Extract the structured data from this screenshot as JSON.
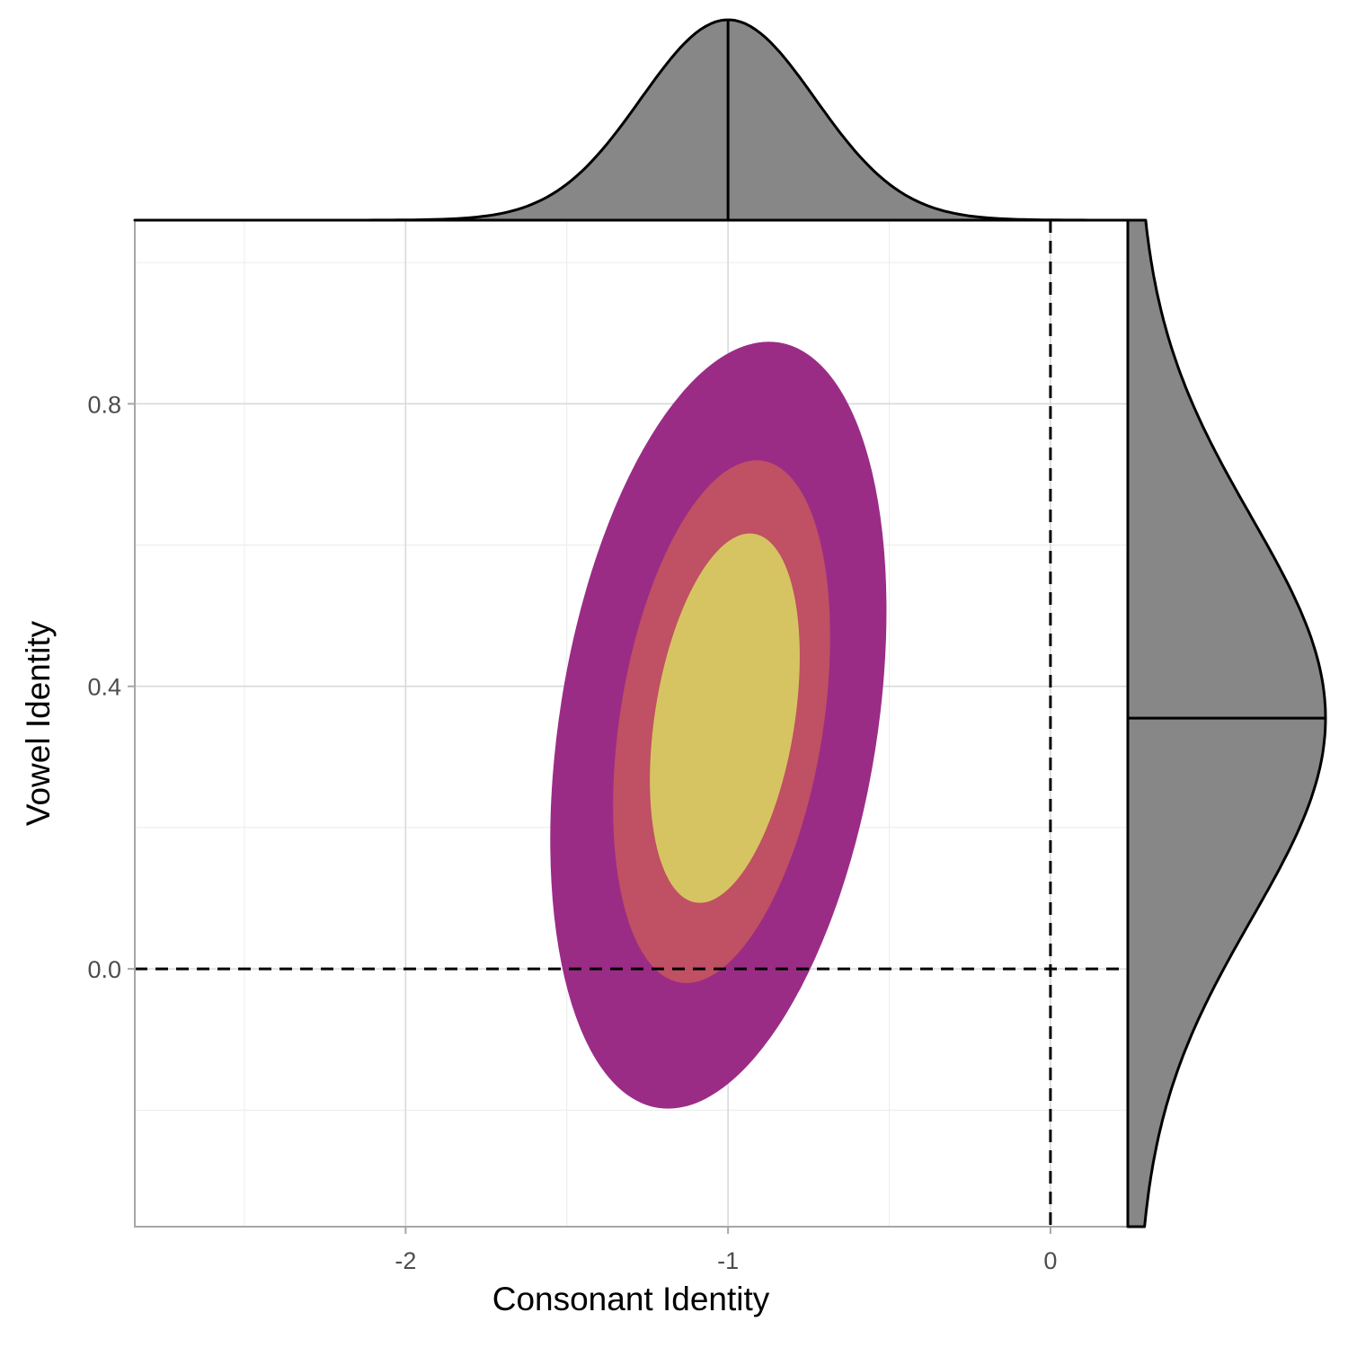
{
  "chart_data": {
    "type": "density-contour-with-marginals",
    "xlabel": "Consonant Identity",
    "ylabel": "Vowel Identity",
    "xlim": [
      -2.84,
      0.24
    ],
    "ylim": [
      -0.365,
      1.06
    ],
    "x_ticks": [
      -2,
      -1,
      0
    ],
    "y_ticks": [
      0.0,
      0.4,
      0.8
    ],
    "x_tick_labels": [
      "-2",
      "-1",
      "0"
    ],
    "y_tick_labels": [
      "0.0",
      "0.4",
      "0.8"
    ],
    "grid": true,
    "reference_lines": {
      "x": 0,
      "y": 0,
      "style": "dashed"
    },
    "contours": [
      {
        "level": "outer",
        "color": "#9a2c86",
        "center": [
          -1.03,
          0.345
        ],
        "x_range": [
          -1.5,
          -0.5
        ],
        "y_range": [
          -0.2,
          0.9
        ]
      },
      {
        "level": "middle",
        "color": "#c05063",
        "center": [
          -1.02,
          0.35
        ],
        "x_range": [
          -1.34,
          -0.7
        ],
        "y_range": [
          -0.02,
          0.73
        ]
      },
      {
        "level": "inner",
        "color": "#d6c462",
        "center": [
          -1.01,
          0.355
        ],
        "x_range": [
          -1.24,
          -0.8
        ],
        "y_range": [
          0.09,
          0.62
        ]
      }
    ],
    "marginal_x": {
      "fill": "#878787",
      "mode": -1.0,
      "sd": 0.27
    },
    "marginal_y": {
      "fill": "#878787",
      "mode": 0.355,
      "sd": 0.285
    }
  }
}
